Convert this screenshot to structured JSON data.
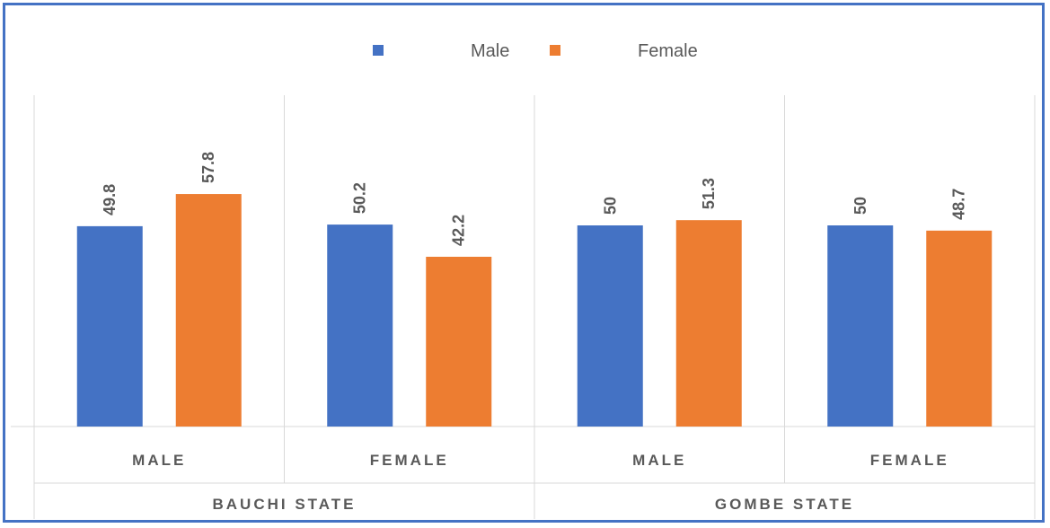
{
  "chart_data": {
    "type": "bar",
    "title": "",
    "xlabel": "",
    "ylabel": "",
    "groups": [
      {
        "label": "BAUCHI STATE",
        "categories": [
          "MALE",
          "FEMALE"
        ]
      },
      {
        "label": "GOMBE STATE",
        "categories": [
          "MALE",
          "FEMALE"
        ]
      }
    ],
    "categories": [
      "MALE",
      "FEMALE",
      "MALE",
      "FEMALE"
    ],
    "series": [
      {
        "name": "Male",
        "color": "#4472c4",
        "values": [
          49.8,
          50.2,
          50,
          50
        ]
      },
      {
        "name": "Female",
        "color": "#ed7d31",
        "values": [
          57.8,
          42.2,
          51.3,
          48.7
        ]
      }
    ],
    "ylim": [
      0,
      80
    ],
    "legend_position": "top",
    "gridlines": "vertical category separators",
    "data_labels": "rotated above bars"
  }
}
